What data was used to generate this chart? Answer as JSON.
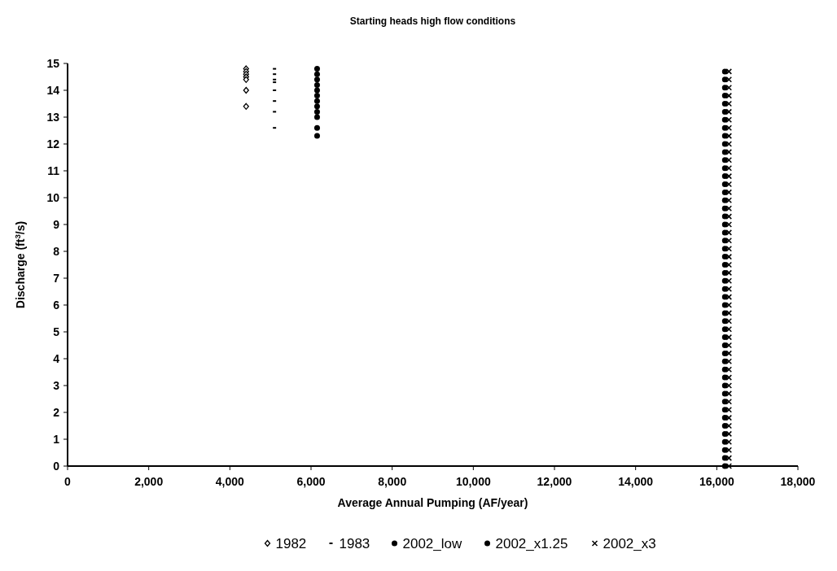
{
  "chart_data": {
    "type": "scatter",
    "title": "Starting heads high flow conditions",
    "xlabel": "Average Annual Pumping (AF/year)",
    "ylabel": "Discharge (ft$^{3}$/s)",
    "xlim": [
      0,
      18000
    ],
    "xticks": [
      0,
      {
        "value": 2000,
        "label": "2,000"
      },
      {
        "value": 4000,
        "label": "4,000"
      },
      {
        "value": 6000,
        "label": "6,000"
      },
      {
        "value": 8000,
        "label": "8,000"
      },
      {
        "value": 10000,
        "label": "10,000"
      },
      {
        "value": 12000,
        "label": "12,000"
      },
      {
        "value": 14000,
        "label": "14,000"
      },
      {
        "value": 16000,
        "label": "16,000"
      },
      {
        "value": 18000,
        "label": "18,000"
      }
    ],
    "ylim": [
      0,
      15
    ],
    "yticks": [
      0,
      1,
      2,
      3,
      4,
      5,
      6,
      7,
      8,
      9,
      10,
      11,
      12,
      13,
      14,
      15
    ],
    "grid": false,
    "legend": "bottom",
    "series": [
      {
        "name": "1982",
        "color": "#000000",
        "marker": "diamond",
        "x": [
          4400,
          4400,
          4400,
          4400,
          4400,
          4400,
          4400
        ],
        "values": [
          14.8,
          14.7,
          14.6,
          14.5,
          14.4,
          14.0,
          13.4
        ]
      },
      {
        "name": "1983",
        "color": "#000000",
        "marker": "square",
        "x": [
          5100,
          5100,
          5100,
          5100,
          5100,
          5100,
          5100,
          5100
        ],
        "values": [
          14.8,
          14.6,
          14.4,
          14.3,
          14.0,
          13.6,
          13.2,
          12.6
        ]
      },
      {
        "name": "2002_low",
        "color": "#000000",
        "marker": "circle",
        "x": [
          6150,
          6150,
          6150,
          6150,
          6150,
          6150,
          6150,
          6150,
          6150,
          6150,
          6150,
          6150
        ],
        "values": [
          14.8,
          14.6,
          14.4,
          14.2,
          14.0,
          13.8,
          13.6,
          13.4,
          13.2,
          13.0,
          12.6,
          12.3
        ]
      },
      {
        "name": "2002_x1.25",
        "color": "#000000",
        "marker": "circle",
        "x": [
          16200,
          16200,
          16200,
          16200,
          16200,
          16200,
          16200,
          16200,
          16200,
          16200,
          16200,
          16200,
          16200,
          16200,
          16200,
          16200,
          16200,
          16200,
          16200,
          16200,
          16200,
          16200,
          16200,
          16200,
          16200,
          16200,
          16200,
          16200,
          16200,
          16200,
          16200,
          16200,
          16200,
          16200,
          16200,
          16200,
          16200,
          16200,
          16200,
          16200,
          16200,
          16200,
          16200,
          16200,
          16200,
          16200,
          16200,
          16200,
          16200,
          16200
        ],
        "values": [
          0,
          0.3,
          0.6,
          0.9,
          1.2,
          1.5,
          1.8,
          2.1,
          2.4,
          2.7,
          3,
          3.3,
          3.6,
          3.9,
          4.2,
          4.5,
          4.8,
          5.1,
          5.4,
          5.7,
          6,
          6.3,
          6.6,
          6.9,
          7.2,
          7.5,
          7.8,
          8.1,
          8.4,
          8.7,
          9,
          9.3,
          9.6,
          9.9,
          10.2,
          10.5,
          10.8,
          11.1,
          11.4,
          11.7,
          12,
          12.3,
          12.6,
          12.9,
          13.2,
          13.5,
          13.8,
          14.1,
          14.4,
          14.7
        ]
      },
      {
        "name": "2002_x3",
        "color": "#000000",
        "marker": "cross",
        "x": [
          16300,
          16300,
          16300,
          16300,
          16300,
          16300,
          16300,
          16300,
          16300,
          16300,
          16300,
          16300,
          16300,
          16300,
          16300,
          16300,
          16300,
          16300,
          16300,
          16300,
          16300,
          16300,
          16300,
          16300,
          16300,
          16300,
          16300,
          16300,
          16300,
          16300,
          16300,
          16300,
          16300,
          16300,
          16300,
          16300,
          16300,
          16300,
          16300,
          16300,
          16300,
          16300,
          16300,
          16300,
          16300,
          16300,
          16300,
          16300,
          16300,
          16300
        ],
        "values": [
          0,
          0.3,
          0.6,
          0.9,
          1.2,
          1.5,
          1.8,
          2.1,
          2.4,
          2.7,
          3,
          3.3,
          3.6,
          3.9,
          4.2,
          4.5,
          4.8,
          5.1,
          5.4,
          5.7,
          6,
          6.3,
          6.6,
          6.9,
          7.2,
          7.5,
          7.8,
          8.1,
          8.4,
          8.7,
          9,
          9.3,
          9.6,
          9.9,
          10.2,
          10.5,
          10.8,
          11.1,
          11.4,
          11.7,
          12,
          12.3,
          12.6,
          12.9,
          13.2,
          13.5,
          13.8,
          14.1,
          14.4,
          14.7
        ]
      }
    ]
  }
}
